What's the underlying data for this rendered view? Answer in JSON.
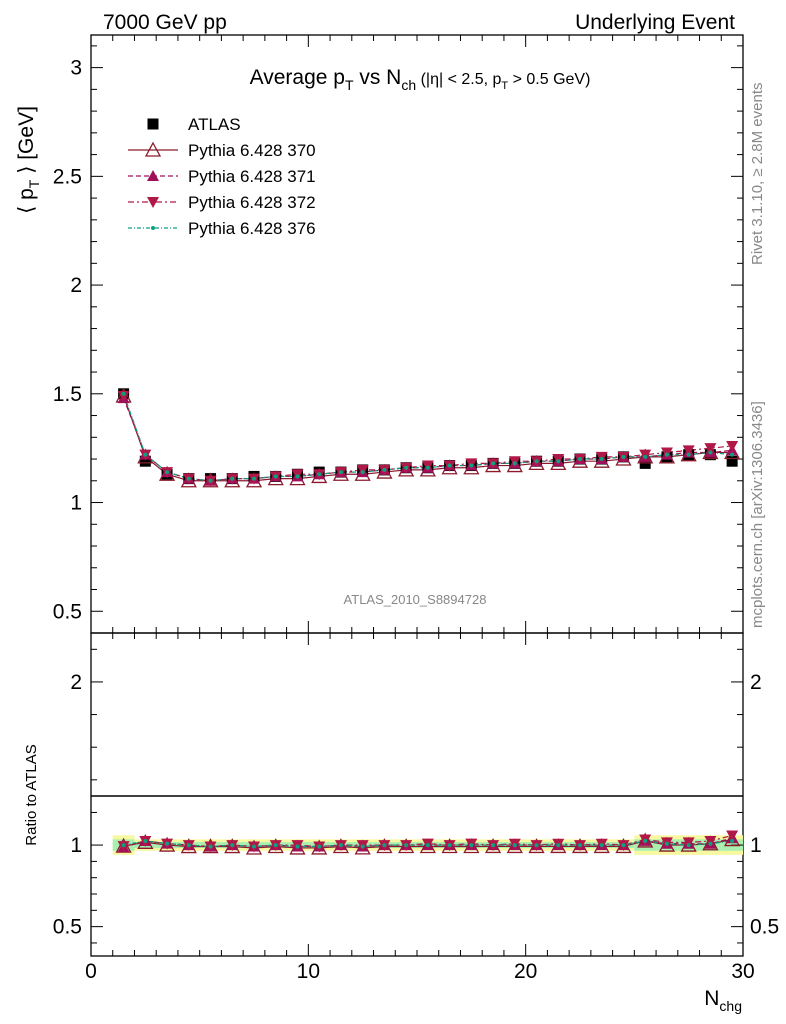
{
  "header": {
    "left": "7000 GeV pp",
    "right": "Underlying Event"
  },
  "side_labels": {
    "rivet": "Rivet 3.1.10, ≥ 2.8M events",
    "mcplots": "mcplots.cern.ch [arXiv:1306.3436]"
  },
  "analysis_id": "ATLAS_2010_S8894728",
  "colors": {
    "atlas": "#000000",
    "p370": "#8b1a2b",
    "p371": "#a0105a",
    "p372": "#b01848",
    "p376": "#0aa080",
    "band_yellow": "#f8f8a0",
    "band_green": "#a8f0b0"
  },
  "chart_data": {
    "type": "scatter",
    "title": "Average p_T vs N_ch (|η| < 2.5, p_T > 0.5 GeV)",
    "title_parts": {
      "main": "Average p",
      "main_sub": "T",
      "vs": " vs N",
      "vs_sub": "ch",
      "cut1": " (|η| < 2.5, p",
      "cut1_sub": "T",
      "cut2": " > 0.5 GeV)"
    },
    "xlabel": "N",
    "xlabel_sub": "chg",
    "ylabel": "⟨ p",
    "ylabel_sub": "T",
    "ylabel_tail": " ⟩ [GeV]",
    "ratio_ylabel": "Ratio to ATLAS",
    "xlim": [
      0,
      30
    ],
    "ylim": [
      0.4,
      3.15
    ],
    "ratio_ylim": [
      0.32,
      2.3
    ],
    "x_ticks": [
      0,
      10,
      20,
      30
    ],
    "x_tick_labels": [
      "0",
      "10",
      "20",
      "30"
    ],
    "y_ticks": [
      0.5,
      1,
      1.5,
      2,
      2.5,
      3
    ],
    "y_tick_labels": [
      "0.5",
      "1",
      "1.5",
      "2",
      "2.5",
      "3"
    ],
    "ratio_ticks": [
      0.5,
      1,
      2
    ],
    "ratio_tick_labels": [
      "0.5",
      "1",
      "2"
    ],
    "legend_position": "top-left",
    "x": [
      1.5,
      2.5,
      3.5,
      4.5,
      5.5,
      6.5,
      7.5,
      8.5,
      9.5,
      10.5,
      11.5,
      12.5,
      13.5,
      14.5,
      15.5,
      16.5,
      17.5,
      18.5,
      19.5,
      20.5,
      21.5,
      22.5,
      23.5,
      24.5,
      25.5,
      26.5,
      27.5,
      28.5,
      29.5
    ],
    "series": [
      {
        "name": "ATLAS",
        "marker": "square",
        "values": [
          1.5,
          1.19,
          1.13,
          1.11,
          1.11,
          1.11,
          1.12,
          1.12,
          1.13,
          1.14,
          1.14,
          1.15,
          1.15,
          1.16,
          1.16,
          1.17,
          1.17,
          1.18,
          1.18,
          1.19,
          1.19,
          1.2,
          1.2,
          1.21,
          1.18,
          1.21,
          1.22,
          1.22,
          1.19
        ]
      },
      {
        "name": "Pythia 6.428 370",
        "marker": "triangle-open",
        "values": [
          1.49,
          1.21,
          1.13,
          1.1,
          1.1,
          1.1,
          1.1,
          1.11,
          1.11,
          1.12,
          1.13,
          1.13,
          1.14,
          1.15,
          1.15,
          1.16,
          1.16,
          1.17,
          1.17,
          1.18,
          1.18,
          1.19,
          1.19,
          1.2,
          1.21,
          1.21,
          1.22,
          1.23,
          1.23
        ]
      },
      {
        "name": "Pythia 6.428 371",
        "marker": "triangle-up",
        "values": [
          1.48,
          1.22,
          1.14,
          1.11,
          1.1,
          1.11,
          1.11,
          1.12,
          1.12,
          1.13,
          1.14,
          1.14,
          1.15,
          1.16,
          1.16,
          1.17,
          1.17,
          1.18,
          1.18,
          1.19,
          1.19,
          1.2,
          1.2,
          1.21,
          1.21,
          1.22,
          1.23,
          1.23,
          1.24
        ]
      },
      {
        "name": "Pythia 6.428 372",
        "marker": "triangle-down",
        "values": [
          1.49,
          1.22,
          1.14,
          1.11,
          1.1,
          1.11,
          1.11,
          1.12,
          1.13,
          1.13,
          1.14,
          1.15,
          1.15,
          1.16,
          1.17,
          1.17,
          1.18,
          1.18,
          1.19,
          1.19,
          1.2,
          1.2,
          1.21,
          1.21,
          1.22,
          1.23,
          1.24,
          1.25,
          1.26
        ]
      },
      {
        "name": "Pythia 6.428 376",
        "marker": "dot",
        "values": [
          1.5,
          1.22,
          1.14,
          1.11,
          1.1,
          1.11,
          1.11,
          1.12,
          1.12,
          1.13,
          1.14,
          1.14,
          1.15,
          1.16,
          1.16,
          1.17,
          1.17,
          1.18,
          1.18,
          1.19,
          1.19,
          1.2,
          1.2,
          1.21,
          1.21,
          1.22,
          1.22,
          1.23,
          1.22
        ]
      }
    ]
  }
}
